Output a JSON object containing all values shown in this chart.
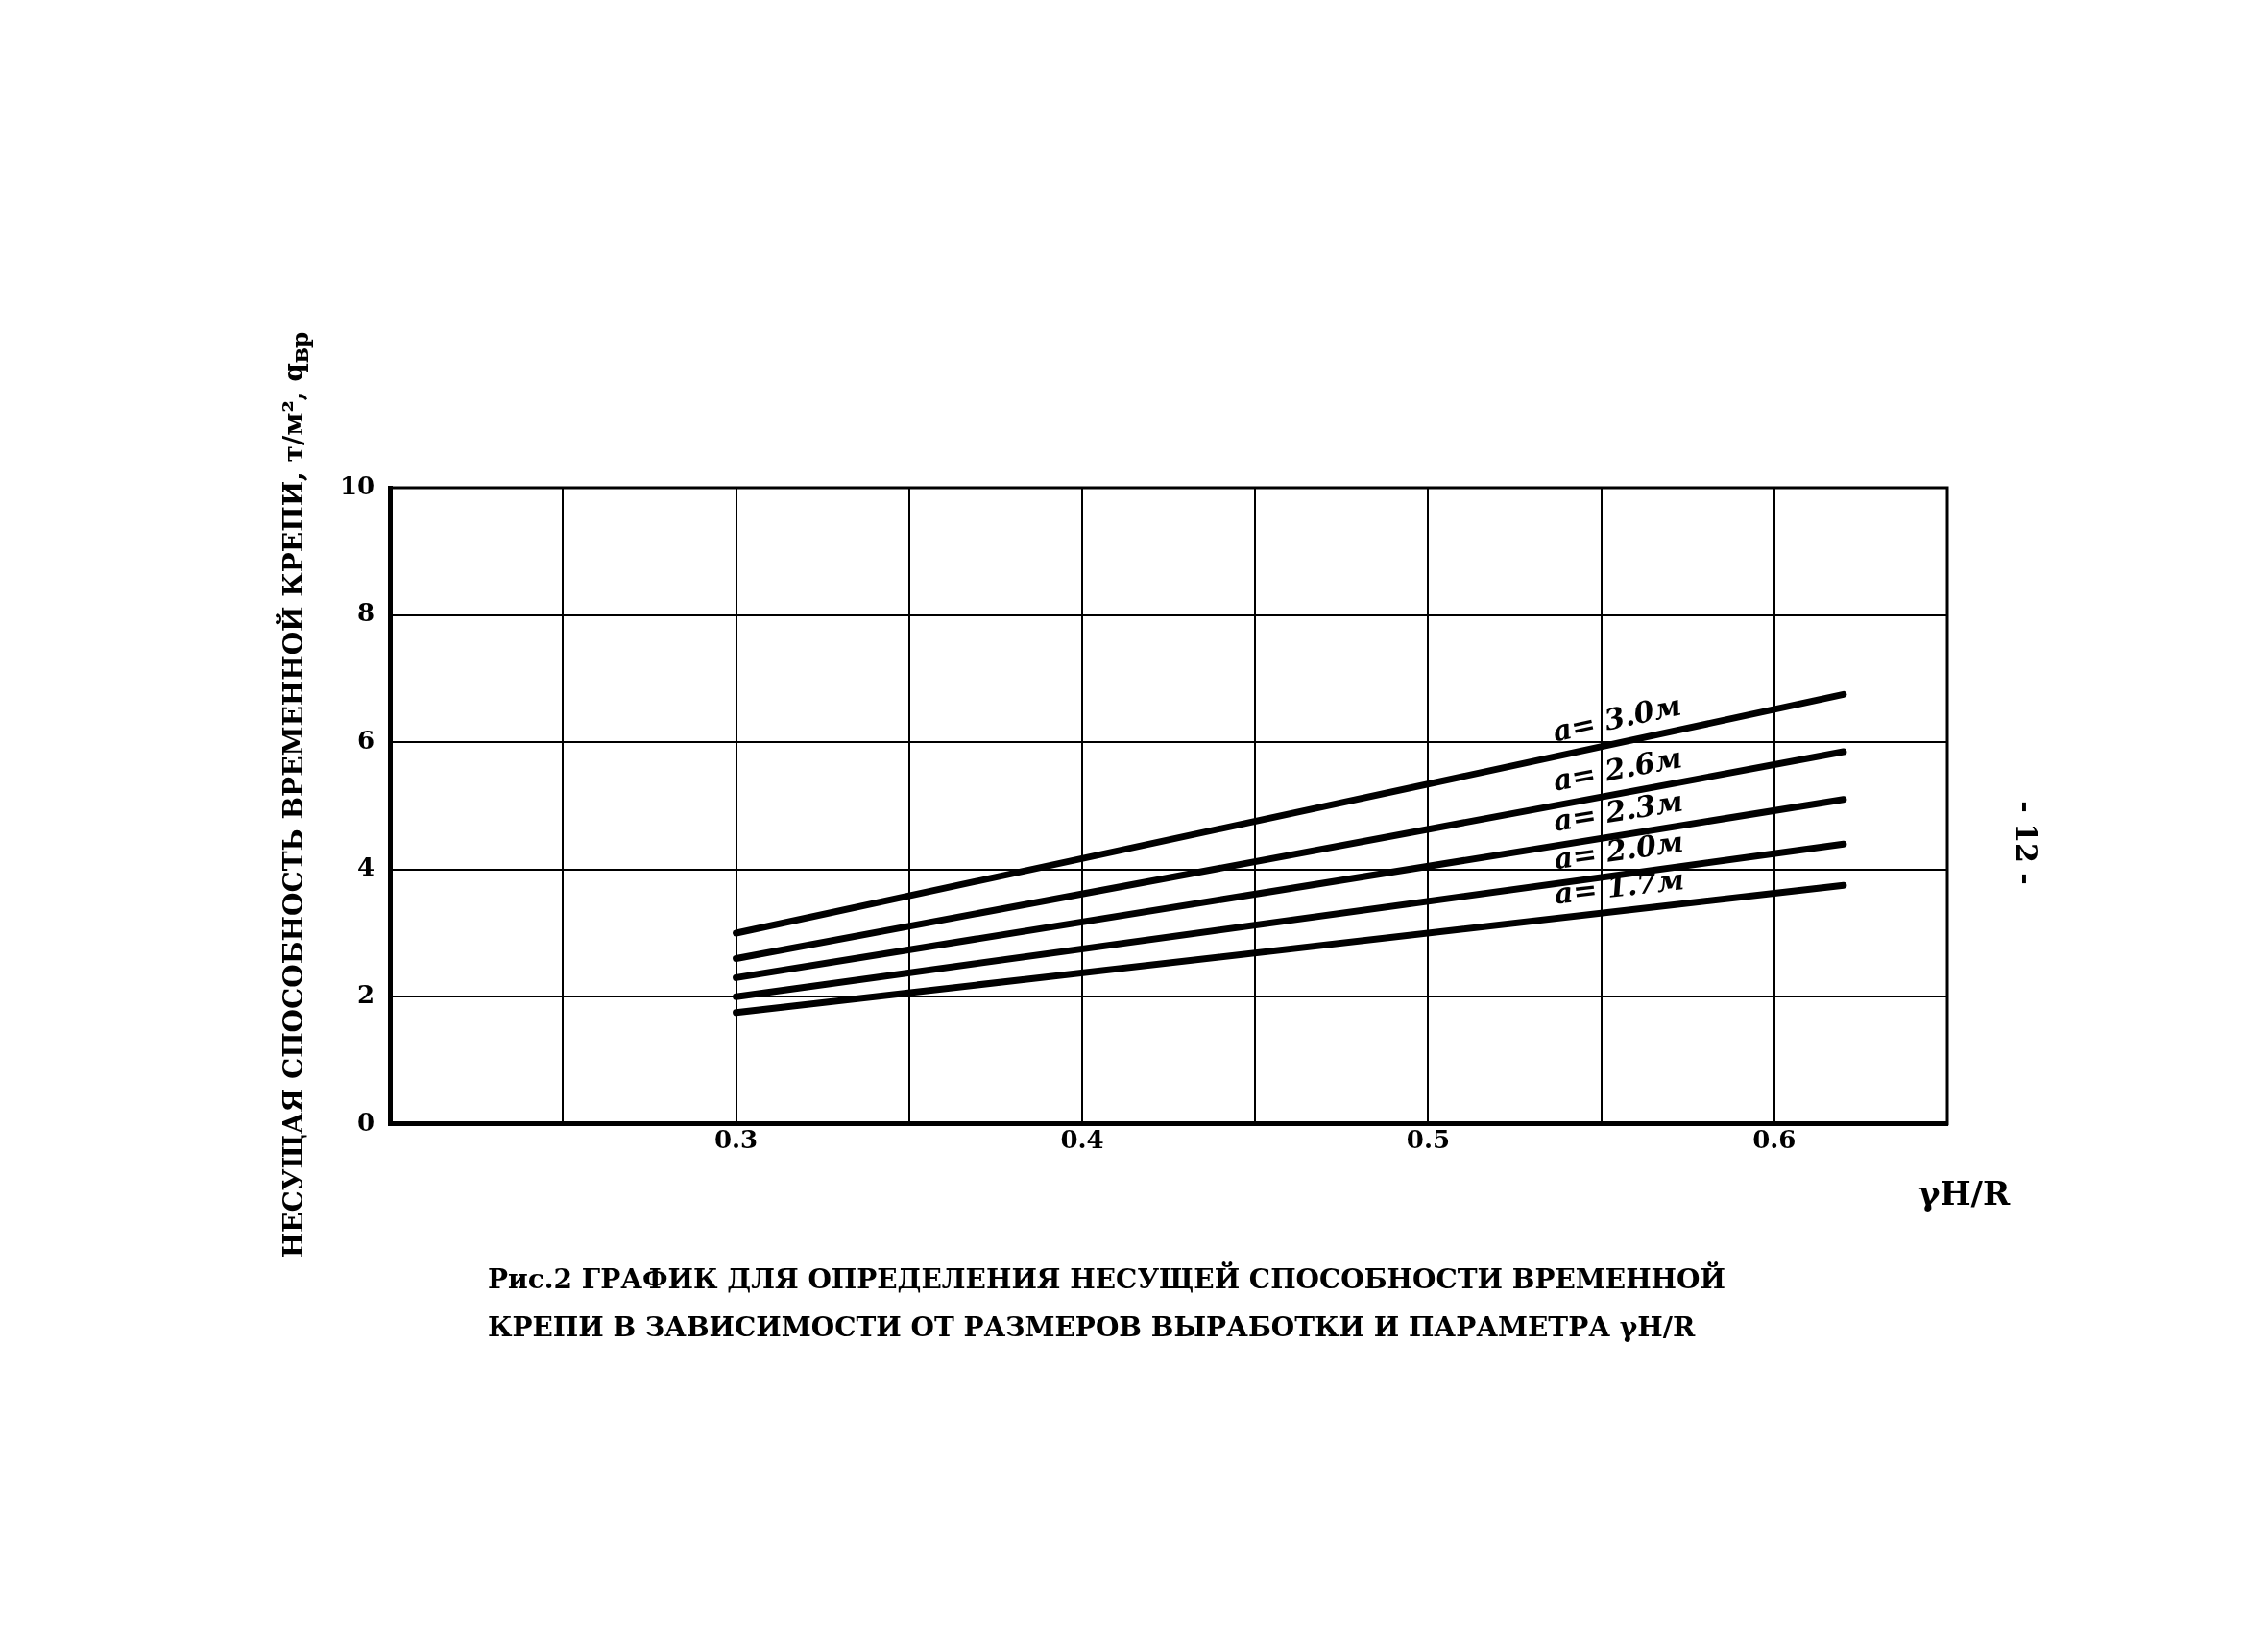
{
  "chart_data": {
    "type": "line",
    "title": "Рис.2     ГРАФИК ДЛЯ ОПРЕДЕЛЕНИЯ НЕСУЩЕЙ СПОСОБНОСТИ ВРЕМЕННОЙ КРЕПИ В ЗАВИСИМОСТИ ОТ РАЗМЕРОВ ВЫРАБОТКИ И ПАРАМЕТРА γH/R",
    "xlabel": "γH/R",
    "ylabel": "НЕСУЩАЯ СПОСОБНОСТЬ ВРЕМЕННОЙ КРЕПИ, т/м², q$_{вр}$",
    "annotations": [
      "- 12 -"
    ],
    "x": [
      0.3,
      0.62
    ],
    "series": [
      {
        "name": "a= 3.0м",
        "color": "#000000",
        "values": [
          3.0,
          6.75
        ]
      },
      {
        "name": "a= 2.6м",
        "color": "#000000",
        "values": [
          2.6,
          5.85
        ]
      },
      {
        "name": "a= 2.3м",
        "color": "#000000",
        "values": [
          2.3,
          5.1
        ]
      },
      {
        "name": "a= 2.0м",
        "color": "#000000",
        "values": [
          2.0,
          4.4
        ]
      },
      {
        "name": "a= 1.7м",
        "color": "#000000",
        "values": [
          1.75,
          3.75
        ]
      }
    ],
    "xlim": [
      0.2,
      0.65
    ],
    "xticks": [
      {
        "value": 0.25,
        "label": null
      },
      0.3,
      {
        "value": 0.35,
        "label": null
      },
      0.4,
      {
        "value": 0.45,
        "label": null
      },
      0.5,
      {
        "value": 0.55,
        "label": null
      },
      0.6
    ],
    "ylim": [
      0,
      10
    ],
    "yticks": [
      0,
      2,
      4,
      6,
      8,
      10
    ],
    "grid": true,
    "legend": false,
    "marker": "none",
    "line_style": "solid"
  }
}
